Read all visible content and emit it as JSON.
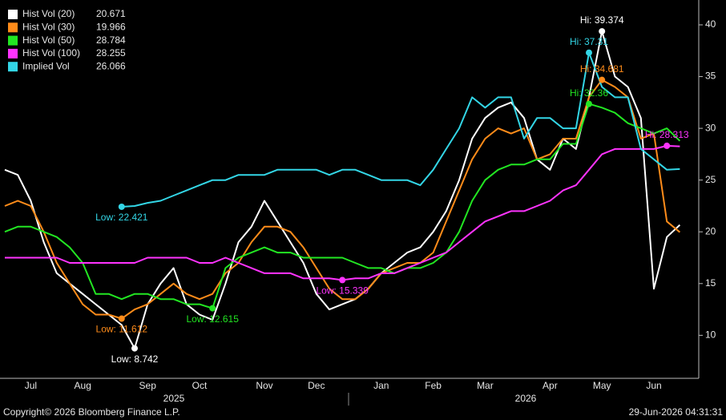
{
  "chart_data": {
    "type": "line",
    "categories": [
      null,
      null,
      "Jul",
      null,
      null,
      null,
      "Aug",
      null,
      null,
      null,
      null,
      "Sep",
      null,
      null,
      null,
      "Oct",
      null,
      null,
      null,
      null,
      "Nov",
      null,
      null,
      null,
      "Dec",
      null,
      null,
      null,
      null,
      "Jan",
      null,
      null,
      null,
      "Feb",
      null,
      null,
      null,
      "Mar",
      null,
      null,
      null,
      null,
      "Apr",
      null,
      null,
      null,
      "May",
      null,
      null,
      null,
      "Jun",
      null,
      null
    ],
    "year_labels": [
      "2025",
      "2026"
    ],
    "ylim": [
      6,
      42.4
    ],
    "yticks": [
      10,
      15,
      20,
      25,
      30,
      35,
      40
    ],
    "grid": false,
    "legend": "top-left",
    "series": [
      {
        "name": "Hist Vol (20)",
        "color": "#ffffff",
        "hi_label": "Hi: 39.374",
        "low_label": "Low: 8.742",
        "values": [
          26,
          25.5,
          23,
          19,
          16,
          15,
          14,
          13,
          12,
          11,
          8.742,
          13,
          15,
          16.5,
          13,
          12,
          11.5,
          15,
          19,
          20.5,
          23,
          21,
          19,
          17,
          14,
          12.5,
          13,
          13.5,
          14.5,
          16,
          17,
          18,
          18.5,
          20,
          22,
          25,
          29,
          31,
          32,
          32.5,
          31,
          27,
          26,
          29,
          28,
          33,
          39.374,
          35,
          34,
          31,
          14.5,
          19.5,
          20.671
        ]
      },
      {
        "name": "Hist Vol (30)",
        "color": "#ff8c1a",
        "hi_label": "Hi: 34.681",
        "low_label": "Low: 11.612",
        "values": [
          22.5,
          23,
          22.5,
          20,
          17,
          15,
          13,
          12,
          12,
          11.612,
          12.5,
          13,
          14,
          15,
          14,
          13.5,
          14,
          16,
          17,
          19,
          20.5,
          20.5,
          20,
          18.5,
          16.5,
          14.5,
          13.5,
          13.5,
          14.5,
          16,
          16.5,
          17,
          17,
          18,
          21,
          24,
          27,
          29,
          30,
          29.5,
          30,
          27,
          27.5,
          29,
          29,
          33,
          34.681,
          34,
          33,
          29,
          29.5,
          21,
          19.966
        ]
      },
      {
        "name": "Hist Vol (50)",
        "color": "#22e622",
        "hi_label": "Hi: 32.36",
        "low_label": "Low: 12.615",
        "values": [
          20,
          20.5,
          20.5,
          20,
          19.5,
          18.5,
          17,
          14,
          14,
          13.5,
          14,
          14,
          13.5,
          13.5,
          13,
          13,
          12.615,
          16.5,
          17.5,
          18,
          18.5,
          18,
          18,
          17.5,
          17.5,
          17.5,
          17.5,
          17,
          16.5,
          16.5,
          16,
          16.5,
          16.5,
          17,
          18,
          20,
          23,
          25,
          26,
          26.5,
          26.5,
          27,
          27,
          28.5,
          28.5,
          32.36,
          32,
          31.5,
          30.5,
          30,
          29.5,
          30,
          28.784
        ]
      },
      {
        "name": "Hist Vol (100)",
        "color": "#ff33ff",
        "hi_label": "Hi: 28.313",
        "low_label": "Low: 15.339",
        "values": [
          17.5,
          17.5,
          17.5,
          17.5,
          17.5,
          17,
          17,
          17,
          17,
          17,
          17,
          17.5,
          17.5,
          17.5,
          17.5,
          17,
          17,
          17.5,
          17,
          16.5,
          16,
          16,
          16,
          15.5,
          15.5,
          15.5,
          15.339,
          15.5,
          15.5,
          16,
          16,
          16.5,
          17,
          17.5,
          18,
          19,
          20,
          21,
          21.5,
          22,
          22,
          22.5,
          23,
          24,
          24.5,
          26,
          27.5,
          28,
          28,
          28,
          28,
          28.313,
          28.255
        ]
      },
      {
        "name": "Implied Vol",
        "color": "#33d6e6",
        "hi_label": "Hi: 37.31",
        "low_label": "Low: 22.421",
        "values": [
          null,
          null,
          null,
          null,
          null,
          null,
          null,
          null,
          null,
          22.421,
          22.5,
          22.8,
          23,
          23.5,
          24,
          24.5,
          25,
          25,
          25.5,
          25.5,
          25.5,
          26,
          26,
          26,
          26,
          25.5,
          26,
          26,
          25.5,
          25,
          25,
          25,
          24.5,
          26,
          28,
          30,
          33,
          32,
          33,
          33,
          29,
          31,
          31,
          30,
          30,
          37.31,
          34,
          33,
          33,
          28,
          27,
          26,
          26.066
        ]
      }
    ]
  },
  "footer": {
    "copyright": "Copyright© 2026 Bloomberg Finance L.P.",
    "timestamp": "29-Jun-2026 04:31:31"
  }
}
